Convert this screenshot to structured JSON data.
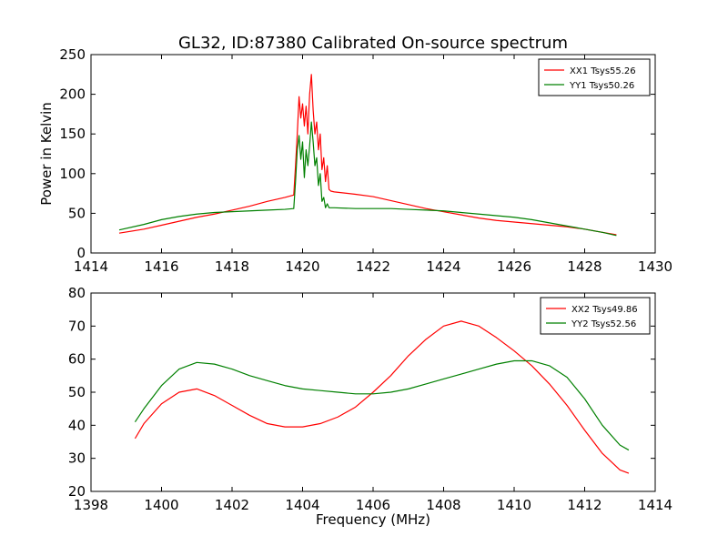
{
  "figure": {
    "title": "GL32, ID:87380 Calibrated On-source spectrum"
  },
  "colors": {
    "xx": "#ff0000",
    "yy": "#008000",
    "axis": "#000000"
  },
  "chart_data": [
    {
      "type": "line",
      "title": "GL32, ID:87380 Calibrated On-source spectrum",
      "xlabel": "",
      "ylabel": "Power in Kelvin",
      "xlim": [
        1414,
        1430
      ],
      "ylim": [
        0,
        250
      ],
      "xticks": [
        1414,
        1416,
        1418,
        1420,
        1422,
        1424,
        1426,
        1428,
        1430
      ],
      "yticks": [
        0,
        50,
        100,
        150,
        200,
        250
      ],
      "grid": false,
      "legend_position": "top-right",
      "series": [
        {
          "name": "XX1 Tsys55.26",
          "color": "#ff0000",
          "x": [
            1414.8,
            1415.5,
            1416.0,
            1416.5,
            1417.0,
            1417.5,
            1418.0,
            1418.5,
            1419.0,
            1419.5,
            1419.75,
            1419.8,
            1419.85,
            1419.9,
            1419.95,
            1420.0,
            1420.05,
            1420.1,
            1420.15,
            1420.2,
            1420.25,
            1420.3,
            1420.35,
            1420.4,
            1420.45,
            1420.5,
            1420.55,
            1420.6,
            1420.65,
            1420.7,
            1420.75,
            1420.8,
            1420.9,
            1421.5,
            1422.0,
            1422.5,
            1423.0,
            1423.5,
            1424.0,
            1424.5,
            1425.0,
            1425.5,
            1426.0,
            1426.5,
            1427.0,
            1427.5,
            1428.0,
            1428.5,
            1428.9
          ],
          "values": [
            25,
            30,
            35,
            40,
            45,
            49,
            54,
            59,
            65,
            70,
            73,
            110,
            150,
            197,
            170,
            188,
            160,
            185,
            150,
            200,
            225,
            180,
            150,
            165,
            130,
            150,
            105,
            120,
            90,
            110,
            80,
            78,
            77,
            74,
            71,
            66,
            61,
            56,
            52,
            48,
            44,
            41,
            39,
            37,
            35,
            33,
            30,
            26,
            23
          ]
        },
        {
          "name": "YY1 Tsys50.26",
          "color": "#008000",
          "x": [
            1414.8,
            1415.5,
            1416.0,
            1416.5,
            1417.0,
            1417.5,
            1418.0,
            1418.5,
            1419.0,
            1419.5,
            1419.75,
            1419.8,
            1419.85,
            1419.9,
            1419.95,
            1420.0,
            1420.05,
            1420.1,
            1420.15,
            1420.2,
            1420.25,
            1420.3,
            1420.35,
            1420.4,
            1420.45,
            1420.5,
            1420.55,
            1420.6,
            1420.65,
            1420.7,
            1420.75,
            1420.8,
            1420.9,
            1421.5,
            1422.0,
            1422.5,
            1423.0,
            1423.5,
            1424.0,
            1424.5,
            1425.0,
            1425.5,
            1426.0,
            1426.5,
            1427.0,
            1427.5,
            1428.0,
            1428.5,
            1428.9
          ],
          "values": [
            29,
            36,
            42,
            46,
            49,
            51,
            52,
            53,
            54,
            55,
            56,
            90,
            130,
            148,
            118,
            140,
            95,
            130,
            110,
            135,
            165,
            140,
            110,
            120,
            85,
            100,
            65,
            70,
            57,
            62,
            57,
            57,
            57,
            56,
            56,
            56,
            55,
            54,
            53,
            51,
            49,
            47,
            45,
            42,
            38,
            34,
            30,
            26,
            22
          ]
        }
      ]
    },
    {
      "type": "line",
      "title": "",
      "xlabel": "Frequency (MHz)",
      "ylabel": "",
      "xlim": [
        1398,
        1414
      ],
      "ylim": [
        20,
        80
      ],
      "xticks": [
        1398,
        1400,
        1402,
        1404,
        1406,
        1408,
        1410,
        1412,
        1414
      ],
      "yticks": [
        20,
        30,
        40,
        50,
        60,
        70,
        80
      ],
      "grid": false,
      "legend_position": "top-right",
      "series": [
        {
          "name": "XX2 Tsys49.86",
          "color": "#ff0000",
          "x": [
            1399.25,
            1399.5,
            1400.0,
            1400.5,
            1401.0,
            1401.5,
            1402.0,
            1402.5,
            1403.0,
            1403.5,
            1404.0,
            1404.5,
            1405.0,
            1405.5,
            1406.0,
            1406.5,
            1407.0,
            1407.5,
            1408.0,
            1408.5,
            1409.0,
            1409.5,
            1410.0,
            1410.5,
            1411.0,
            1411.5,
            1412.0,
            1412.5,
            1413.0,
            1413.25
          ],
          "values": [
            36,
            40.5,
            46.5,
            50,
            51,
            49,
            46,
            43,
            40.5,
            39.5,
            39.5,
            40.5,
            42.5,
            45.5,
            50,
            55,
            61,
            66,
            70,
            71.5,
            70,
            66.5,
            62.5,
            58,
            52.5,
            46,
            38.5,
            31.5,
            26.5,
            25.5
          ]
        },
        {
          "name": "YY2 Tsys52.56",
          "color": "#008000",
          "x": [
            1399.25,
            1399.5,
            1400.0,
            1400.5,
            1401.0,
            1401.5,
            1402.0,
            1402.5,
            1403.0,
            1403.5,
            1404.0,
            1404.5,
            1405.0,
            1405.5,
            1406.0,
            1406.5,
            1407.0,
            1407.5,
            1408.0,
            1408.5,
            1409.0,
            1409.5,
            1410.0,
            1410.5,
            1411.0,
            1411.5,
            1412.0,
            1412.5,
            1413.0,
            1413.25
          ],
          "values": [
            41,
            45,
            52,
            57,
            59,
            58.5,
            57,
            55,
            53.5,
            52,
            51,
            50.5,
            50,
            49.5,
            49.5,
            50,
            51,
            52.5,
            54,
            55.5,
            57,
            58.5,
            59.5,
            59.5,
            58,
            54.5,
            48,
            40,
            34,
            32.5
          ]
        }
      ]
    }
  ]
}
